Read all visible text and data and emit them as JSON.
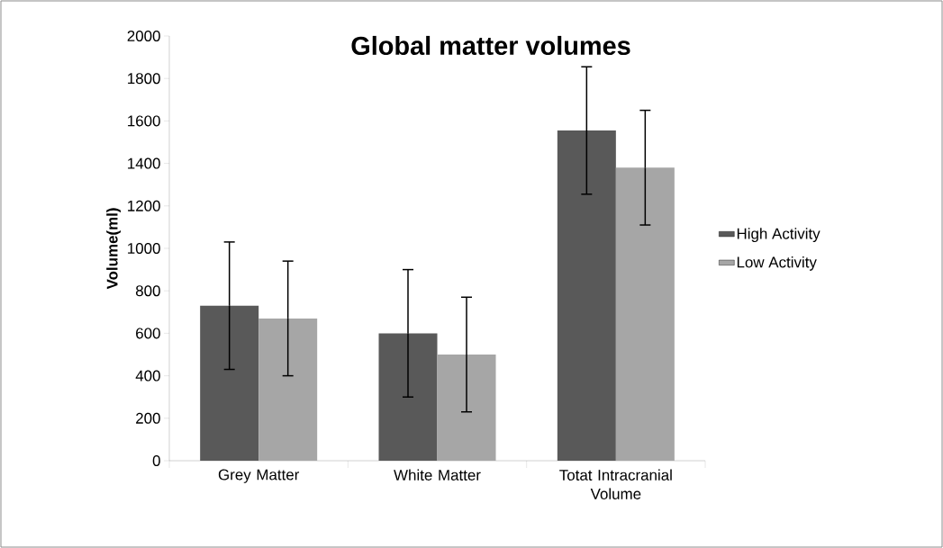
{
  "chart_data": {
    "type": "bar",
    "title": "Global matter volumes",
    "ylabel": "Volume(ml)",
    "categories": [
      "Grey Matter",
      "White Matter",
      "Totat Intracranial Volume"
    ],
    "series": [
      {
        "name": "High Activity",
        "color": "#595959",
        "values": [
          730,
          600,
          1555
        ],
        "errors": [
          300,
          300,
          300
        ]
      },
      {
        "name": "Low Activity",
        "color": "#a6a6a6",
        "values": [
          670,
          500,
          1380
        ],
        "errors": [
          270,
          270,
          270
        ]
      }
    ],
    "ylim": [
      0,
      2000
    ],
    "yticks": [
      0,
      200,
      400,
      600,
      800,
      1000,
      1200,
      1400,
      1600,
      1800,
      2000
    ],
    "legend": "right"
  }
}
